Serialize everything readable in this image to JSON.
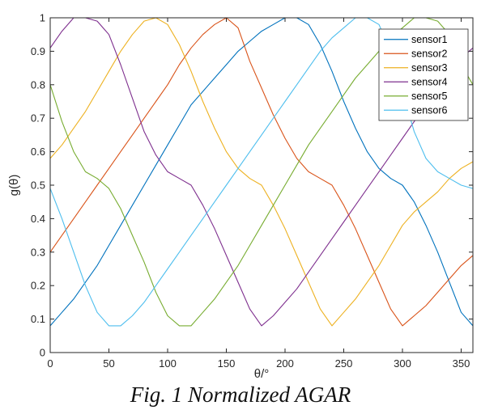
{
  "chart_data": {
    "type": "line",
    "title": "",
    "xlabel": "θ/°",
    "ylabel": "g(θ)",
    "xlim": [
      0,
      360
    ],
    "ylim": [
      0,
      1
    ],
    "x_ticks": [
      0,
      50,
      100,
      150,
      200,
      250,
      300,
      350
    ],
    "y_ticks": [
      0,
      0.1,
      0.2,
      0.3,
      0.4,
      0.5,
      0.6,
      0.7,
      0.8,
      0.9,
      1
    ],
    "grid": false,
    "legend_position": "top-right",
    "x": [
      0,
      10,
      20,
      30,
      40,
      50,
      60,
      70,
      80,
      90,
      100,
      110,
      120,
      130,
      140,
      150,
      160,
      170,
      180,
      190,
      200,
      210,
      220,
      230,
      240,
      250,
      260,
      270,
      280,
      290,
      300,
      310,
      320,
      330,
      340,
      350,
      360
    ],
    "series": [
      {
        "name": "sensor1",
        "color": "#0072BD",
        "values": [
          0.08,
          0.12,
          0.16,
          0.21,
          0.26,
          0.32,
          0.38,
          0.44,
          0.5,
          0.56,
          0.62,
          0.68,
          0.74,
          0.78,
          0.82,
          0.86,
          0.9,
          0.93,
          0.96,
          0.98,
          1.0,
          1.0,
          0.98,
          0.92,
          0.84,
          0.75,
          0.67,
          0.6,
          0.55,
          0.52,
          0.5,
          0.45,
          0.38,
          0.3,
          0.21,
          0.12,
          0.08
        ]
      },
      {
        "name": "sensor2",
        "color": "#D95319",
        "values": [
          0.3,
          0.35,
          0.4,
          0.45,
          0.5,
          0.55,
          0.6,
          0.65,
          0.7,
          0.75,
          0.8,
          0.86,
          0.91,
          0.95,
          0.98,
          1.0,
          0.97,
          0.87,
          0.79,
          0.71,
          0.64,
          0.58,
          0.54,
          0.52,
          0.5,
          0.44,
          0.37,
          0.29,
          0.21,
          0.13,
          0.08,
          0.11,
          0.14,
          0.18,
          0.22,
          0.26,
          0.29
        ]
      },
      {
        "name": "sensor3",
        "color": "#EDB120",
        "values": [
          0.58,
          0.62,
          0.67,
          0.72,
          0.78,
          0.84,
          0.9,
          0.95,
          0.99,
          1.0,
          0.98,
          0.92,
          0.84,
          0.75,
          0.67,
          0.6,
          0.55,
          0.52,
          0.5,
          0.44,
          0.37,
          0.29,
          0.21,
          0.13,
          0.08,
          0.12,
          0.16,
          0.21,
          0.26,
          0.32,
          0.38,
          0.42,
          0.45,
          0.48,
          0.52,
          0.55,
          0.57
        ]
      },
      {
        "name": "sensor4",
        "color": "#7E2F8E",
        "values": [
          0.91,
          0.96,
          1.0,
          1.0,
          0.99,
          0.95,
          0.86,
          0.76,
          0.66,
          0.59,
          0.54,
          0.52,
          0.5,
          0.44,
          0.37,
          0.29,
          0.21,
          0.13,
          0.08,
          0.11,
          0.15,
          0.19,
          0.24,
          0.29,
          0.34,
          0.39,
          0.44,
          0.49,
          0.54,
          0.59,
          0.64,
          0.69,
          0.74,
          0.79,
          0.84,
          0.88,
          0.91
        ]
      },
      {
        "name": "sensor5",
        "color": "#77AC30",
        "values": [
          0.8,
          0.69,
          0.6,
          0.54,
          0.52,
          0.49,
          0.43,
          0.35,
          0.27,
          0.18,
          0.11,
          0.08,
          0.08,
          0.12,
          0.16,
          0.21,
          0.26,
          0.32,
          0.38,
          0.44,
          0.5,
          0.56,
          0.62,
          0.67,
          0.72,
          0.77,
          0.82,
          0.86,
          0.9,
          0.94,
          0.97,
          1.0,
          1.0,
          0.99,
          0.95,
          0.86,
          0.8
        ]
      },
      {
        "name": "sensor6",
        "color": "#4DBEEE",
        "values": [
          0.49,
          0.4,
          0.3,
          0.2,
          0.12,
          0.08,
          0.08,
          0.11,
          0.15,
          0.2,
          0.25,
          0.3,
          0.35,
          0.4,
          0.45,
          0.5,
          0.55,
          0.6,
          0.65,
          0.7,
          0.75,
          0.8,
          0.85,
          0.9,
          0.94,
          0.97,
          1.0,
          1.0,
          0.98,
          0.9,
          0.78,
          0.66,
          0.58,
          0.54,
          0.52,
          0.5,
          0.49
        ]
      }
    ]
  },
  "caption": "Fig. 1 Normalized AGAR"
}
